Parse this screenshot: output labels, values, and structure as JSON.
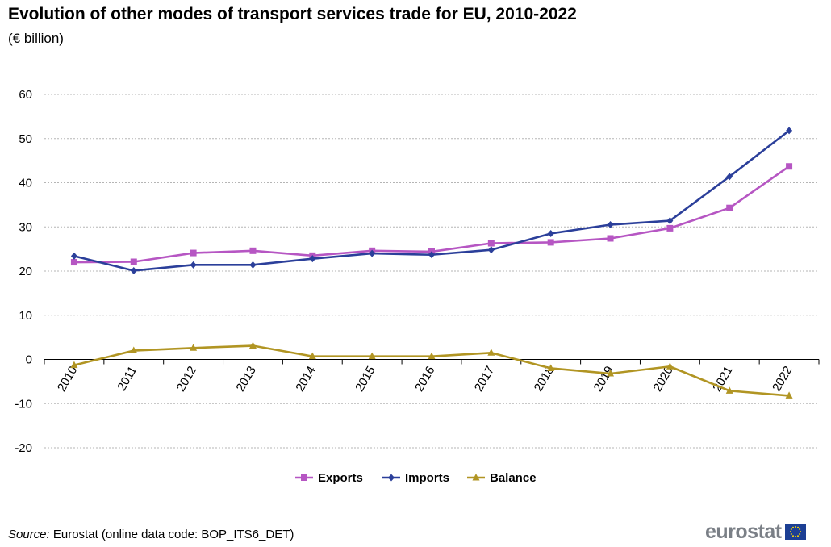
{
  "title": "Evolution of other modes of transport services trade for EU, 2010-2022",
  "subtitle": "(€ billion)",
  "source": {
    "label": "Source:",
    "text": "Eurostat (online data code: BOP_ITS6_DET)"
  },
  "logo": {
    "text": "eurostat",
    "flag_icon": "eu-flag-icon"
  },
  "chart_data": {
    "type": "line",
    "x": [
      "2010",
      "2011",
      "2012",
      "2013",
      "2014",
      "2015",
      "2016",
      "2017",
      "2018",
      "2019",
      "2020",
      "2021",
      "2022"
    ],
    "series": [
      {
        "name": "Exports",
        "color": "#b656c3",
        "marker": "square",
        "values": [
          22.0,
          22.1,
          24.1,
          24.6,
          23.5,
          24.6,
          24.4,
          26.3,
          26.5,
          27.4,
          29.7,
          34.3,
          43.7
        ]
      },
      {
        "name": "Imports",
        "color": "#2b3f9a",
        "marker": "diamond",
        "values": [
          23.4,
          20.1,
          21.4,
          21.4,
          22.8,
          24.0,
          23.7,
          24.8,
          28.5,
          30.5,
          31.4,
          41.4,
          51.8
        ]
      },
      {
        "name": "Balance",
        "color": "#b19523",
        "marker": "triangle",
        "values": [
          -1.3,
          2.0,
          2.6,
          3.1,
          0.7,
          0.7,
          0.7,
          1.5,
          -2.0,
          -3.2,
          -1.6,
          -7.1,
          -8.2
        ]
      }
    ],
    "ylim": [
      -20,
      60
    ],
    "yticks": [
      -20,
      -10,
      0,
      10,
      20,
      30,
      40,
      50,
      60
    ],
    "grid": true,
    "legend_position": "bottom-center"
  }
}
